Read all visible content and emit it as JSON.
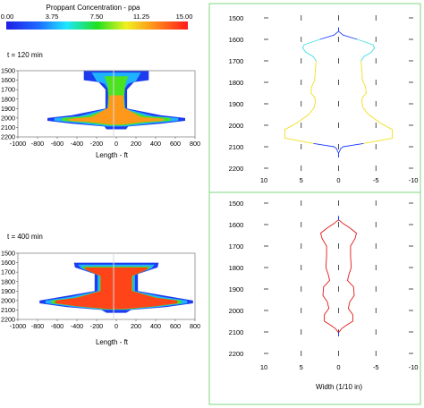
{
  "colorbar": {
    "title": "Proppant Concentration - ppa",
    "ticks": [
      "0.00",
      "3.75",
      "7.50",
      "11.25",
      "15.00"
    ],
    "range": [
      0,
      15
    ]
  },
  "colors": {
    "panel_border": "#7fd97f",
    "top_profile": [
      "#1f3fff",
      "#40e0e0",
      "#f0e020",
      "#f0c020",
      "#1f3fff"
    ],
    "bottom_profile": "#e01818"
  },
  "chart_data": [
    {
      "type": "heatmap",
      "title": "t = 120 min",
      "xlabel": "Length - ft",
      "ylabel": "",
      "xlim": [
        -1000,
        800
      ],
      "ylim": [
        2200,
        1500
      ],
      "x_ticks": [
        "-1000",
        "-800",
        "-600",
        "-400",
        "-200",
        "0",
        "200",
        "400",
        "600",
        "800"
      ],
      "y_ticks": [
        "1500",
        "1600",
        "1700",
        "1800",
        "1900",
        "2000",
        "2100",
        "2200"
      ],
      "layers": [
        {
          "concentration": 1,
          "extent": [
            [
              1500,
              -330,
              330
            ],
            [
              1600,
              -330,
              330
            ],
            [
              1620,
              -180,
              180
            ],
            [
              1700,
              -110,
              110
            ],
            [
              1900,
              -110,
              110
            ],
            [
              1970,
              -450,
              450
            ],
            [
              2000,
              -700,
              700
            ],
            [
              2030,
              -700,
              700
            ],
            [
              2060,
              -450,
              450
            ],
            [
              2090,
              -120,
              120
            ],
            [
              2120,
              -100,
              100
            ]
          ]
        },
        {
          "concentration": 4,
          "extent": [
            [
              1520,
              -250,
              250
            ],
            [
              1610,
              -200,
              200
            ],
            [
              1640,
              -120,
              120
            ],
            [
              1700,
              -80,
              80
            ],
            [
              1900,
              -90,
              90
            ],
            [
              1980,
              -380,
              380
            ],
            [
              2000,
              -630,
              630
            ],
            [
              2030,
              -630,
              630
            ],
            [
              2055,
              -380,
              380
            ],
            [
              2090,
              -90,
              90
            ]
          ]
        },
        {
          "concentration": 8,
          "extent": [
            [
              1560,
              -120,
              120
            ],
            [
              1650,
              -90,
              90
            ],
            [
              1800,
              -80,
              80
            ],
            [
              1910,
              -90,
              90
            ],
            [
              1980,
              -300,
              300
            ],
            [
              2000,
              -550,
              550
            ],
            [
              2030,
              -550,
              550
            ],
            [
              2050,
              -300,
              300
            ],
            [
              2080,
              -70,
              70
            ]
          ]
        },
        {
          "concentration": 12,
          "extent": [
            [
              1760,
              -70,
              70
            ],
            [
              1890,
              -80,
              80
            ],
            [
              1990,
              -250,
              250
            ],
            [
              2010,
              -480,
              480
            ],
            [
              2030,
              -480,
              480
            ],
            [
              2045,
              -250,
              250
            ],
            [
              2070,
              -60,
              60
            ]
          ]
        }
      ]
    },
    {
      "type": "line",
      "title": "",
      "xlabel": "",
      "ylabel": "",
      "xlim": [
        10,
        -10
      ],
      "ylim": [
        2200,
        1500
      ],
      "x_ticks": [
        "10",
        "5",
        "0",
        "-5",
        "-10"
      ],
      "y_ticks": [
        "1500",
        "1600",
        "1700",
        "1800",
        "1900",
        "2000",
        "2100",
        "2200"
      ],
      "profile": [
        [
          1565,
          0.1
        ],
        [
          1580,
          0.6
        ],
        [
          1600,
          2.5
        ],
        [
          1625,
          4.6
        ],
        [
          1640,
          4.8
        ],
        [
          1660,
          4.4
        ],
        [
          1680,
          3.4
        ],
        [
          1700,
          3.0
        ],
        [
          1740,
          3.1
        ],
        [
          1790,
          3.2
        ],
        [
          1820,
          3.6
        ],
        [
          1850,
          3.7
        ],
        [
          1870,
          3.2
        ],
        [
          1890,
          3.1
        ],
        [
          1920,
          3.3
        ],
        [
          1950,
          4.0
        ],
        [
          1990,
          5.6
        ],
        [
          2020,
          7.2
        ],
        [
          2060,
          7.2
        ],
        [
          2085,
          3.3
        ],
        [
          2100,
          0.6
        ],
        [
          2110,
          0.25
        ],
        [
          2125,
          0.1
        ]
      ]
    },
    {
      "type": "heatmap",
      "title": "t = 400 min",
      "xlabel": "Length - ft",
      "ylabel": "",
      "xlim": [
        -1000,
        800
      ],
      "ylim": [
        2200,
        1500
      ],
      "x_ticks": [
        "-1000",
        "-800",
        "-600",
        "-400",
        "-200",
        "0",
        "200",
        "400",
        "600",
        "800"
      ],
      "y_ticks": [
        "1500",
        "1600",
        "1700",
        "1800",
        "1900",
        "2000",
        "2100",
        "2200"
      ],
      "layers": [
        {
          "concentration": 1,
          "extent": [
            [
              1600,
              -430,
              430
            ],
            [
              1650,
              -420,
              420
            ],
            [
              1720,
              -220,
              220
            ],
            [
              1900,
              -220,
              220
            ],
            [
              1950,
              -500,
              500
            ],
            [
              2000,
              -780,
              780
            ],
            [
              2030,
              -780,
              780
            ],
            [
              2070,
              -500,
              500
            ],
            [
              2100,
              -150,
              150
            ],
            [
              2130,
              -100,
              100
            ]
          ]
        },
        {
          "concentration": 4,
          "extent": [
            [
              1620,
              -390,
              390
            ],
            [
              1660,
              -360,
              360
            ],
            [
              1730,
              -190,
              190
            ],
            [
              1900,
              -190,
              190
            ],
            [
              1960,
              -460,
              460
            ],
            [
              2000,
              -720,
              720
            ],
            [
              2030,
              -720,
              720
            ],
            [
              2065,
              -460,
              460
            ],
            [
              2100,
              -120,
              120
            ]
          ]
        },
        {
          "concentration": 8,
          "extent": [
            [
              1640,
              -350,
              350
            ],
            [
              1670,
              -320,
              320
            ],
            [
              1740,
              -170,
              170
            ],
            [
              1900,
              -170,
              170
            ],
            [
              1970,
              -420,
              420
            ],
            [
              2000,
              -660,
              660
            ],
            [
              2030,
              -660,
              660
            ],
            [
              2060,
              -420,
              420
            ],
            [
              2095,
              -100,
              100
            ]
          ]
        },
        {
          "concentration": 14,
          "extent": [
            [
              1650,
              -330,
              330
            ],
            [
              1680,
              -300,
              300
            ],
            [
              1740,
              -160,
              160
            ],
            [
              1900,
              -160,
              160
            ],
            [
              1970,
              -400,
              400
            ],
            [
              2000,
              -620,
              620
            ],
            [
              2030,
              -620,
              620
            ],
            [
              2060,
              -400,
              400
            ],
            [
              2090,
              -90,
              90
            ]
          ]
        }
      ]
    },
    {
      "type": "line",
      "title": "",
      "xlabel": "Width (1/10 in)",
      "ylabel": "",
      "xlim": [
        10,
        -10
      ],
      "ylim": [
        2200,
        1500
      ],
      "x_ticks": [
        "10",
        "5",
        "0",
        "-5",
        "-10"
      ],
      "y_ticks": [
        "1500",
        "1600",
        "1700",
        "1800",
        "1900",
        "2000",
        "2100",
        "2200"
      ],
      "profile": [
        [
          1580,
          0.1
        ],
        [
          1595,
          0.6
        ],
        [
          1615,
          1.5
        ],
        [
          1640,
          2.4
        ],
        [
          1665,
          2.2
        ],
        [
          1700,
          1.6
        ],
        [
          1750,
          1.6
        ],
        [
          1800,
          1.7
        ],
        [
          1830,
          1.4
        ],
        [
          1860,
          1.2
        ],
        [
          1890,
          2.0
        ],
        [
          1930,
          2.1
        ],
        [
          1960,
          1.5
        ],
        [
          1990,
          1.3
        ],
        [
          2020,
          1.9
        ],
        [
          2050,
          1.9
        ],
        [
          2070,
          1.0
        ],
        [
          2085,
          0.4
        ],
        [
          2100,
          0.1
        ]
      ]
    }
  ]
}
